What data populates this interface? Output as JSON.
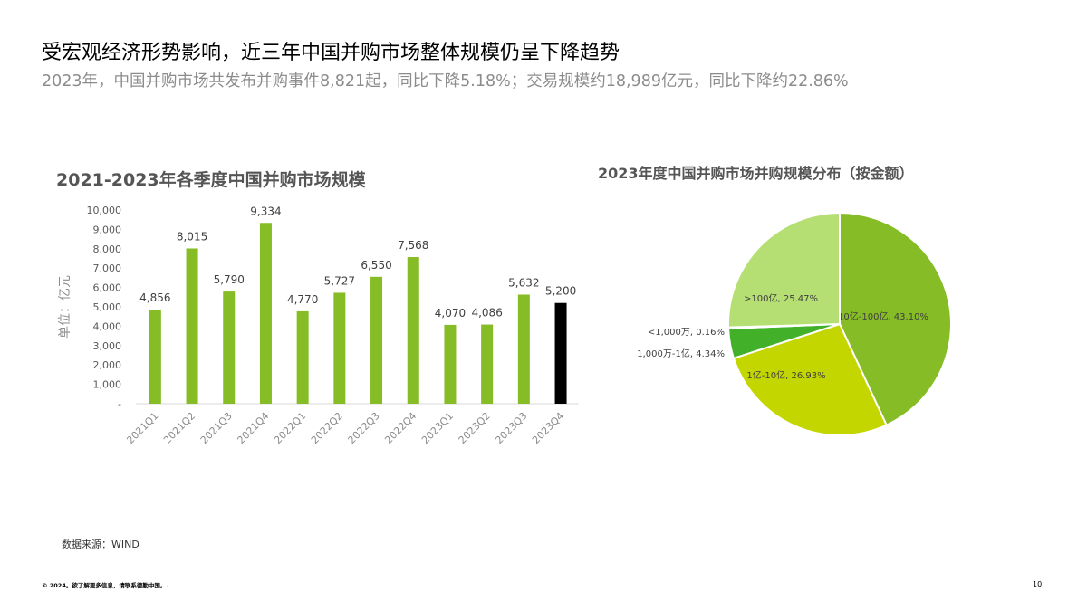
{
  "headline": "受宏观经济形势影响，近三年中国并购市场整体规模仍呈下降趋势",
  "subhead": "2023年，中国并购市场共发布并购事件8,821起，同比下降5.18%；交易规模约18,989亿元，同比下降约22.86%",
  "source": "数据来源：WIND",
  "footer": "© 2024。欲了解更多信息，请联系德勤中国。.",
  "page_number": "10",
  "chart_data": [
    {
      "type": "bar",
      "title": "2021-2023年各季度中国并购市场规模",
      "ylabel": "单位：亿元",
      "xlabel": "",
      "categories": [
        "2021Q1",
        "2021Q2",
        "2021Q3",
        "2021Q4",
        "2022Q1",
        "2022Q2",
        "2022Q3",
        "2022Q4",
        "2023Q1",
        "2023Q2",
        "2023Q3",
        "2023Q4"
      ],
      "values": [
        4856,
        8015,
        5790,
        9334,
        4770,
        5727,
        6550,
        7568,
        4070,
        4086,
        5632,
        5200
      ],
      "value_labels": [
        "4,856",
        "8,015",
        "5,790",
        "9,334",
        "4,770",
        "5,727",
        "6,550",
        "7,568",
        "4,070",
        "4,086",
        "5,632",
        "5,200"
      ],
      "yticks": [
        "-",
        "1,000",
        "2,000",
        "3,000",
        "4,000",
        "5,000",
        "6,000",
        "7,000",
        "8,000",
        "9,000",
        "10,000"
      ],
      "ylim": [
        0,
        10000
      ],
      "bar_color": "#86BC25",
      "highlight_color": "#000000",
      "highlight_index": 11,
      "grid": false
    },
    {
      "type": "pie",
      "title": "2023年度中国并购市场并购规模分布（按金额）",
      "slices": [
        {
          "label": "10亿-100亿, 43.10%",
          "value": 43.1,
          "color": "#86BC25"
        },
        {
          "label": "1亿-10亿, 26.93%",
          "value": 26.93,
          "color": "#C4D600"
        },
        {
          "label": "1,000万-1亿, 4.34%",
          "value": 4.34,
          "color": "#43B02A"
        },
        {
          "label": "<1,000万, 0.16%",
          "value": 0.16,
          "color": "#26890D"
        },
        {
          "label": ">100亿, 25.47%",
          "value": 25.47,
          "color": "#B5DE73"
        }
      ]
    }
  ]
}
